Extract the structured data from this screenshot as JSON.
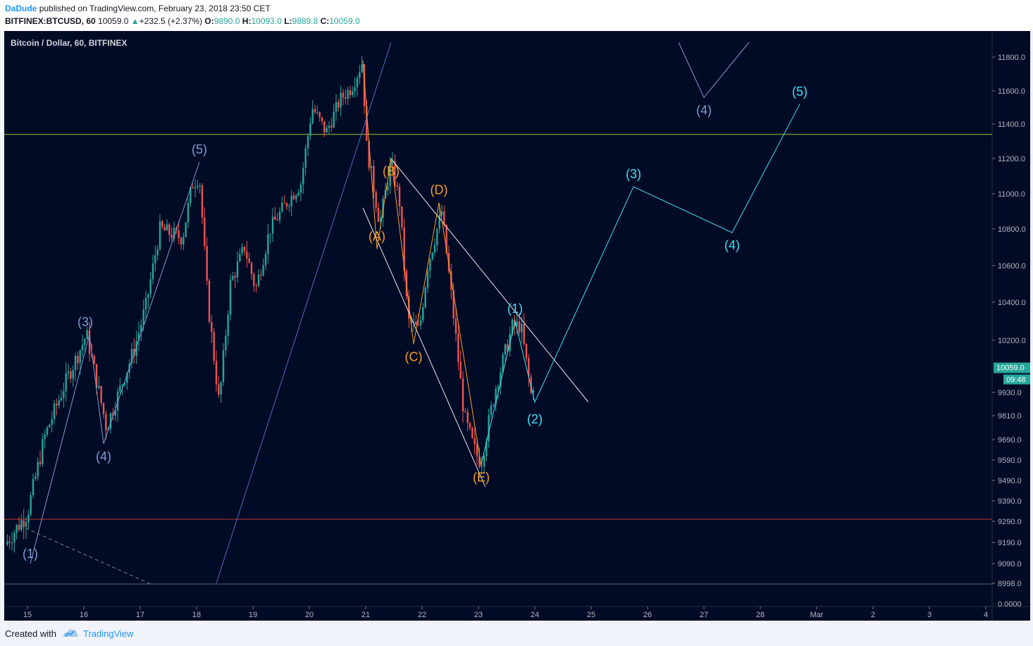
{
  "header": {
    "author": "DaDude",
    "published_text": "published on TradingView.com, February 23, 2018 23:50 CET",
    "symbol": "BITFINEX:BTCUSD, 60",
    "last": "10059.0",
    "change": "+232.5 (+2.37%)",
    "o_label": "O:",
    "o_value": "9890.0",
    "h_label": "H:",
    "h_value": "10093.0",
    "l_label": "L:",
    "l_value": "9889.8",
    "c_label": "C:",
    "c_value": "10059.0"
  },
  "footer": {
    "created_with": "Created with",
    "brand": "TradingView"
  },
  "colors": {
    "background": "#020b26",
    "up": "#26a69a",
    "down": "#ef5350",
    "waves_blue": "#7a9bd1",
    "waves_cyan": "#3ee0f0",
    "waves_orange": "#f5a028"
  },
  "chart_data": {
    "type": "candlestick",
    "title": "Bitcoin / Dollar, 60, BITFINEX",
    "price_ticks": [
      11800,
      11600,
      11400,
      11200,
      11000,
      10800,
      10600,
      10400,
      10200,
      9930,
      9810,
      9690,
      9590,
      9490,
      9390,
      9290,
      9190,
      9090,
      8998
    ],
    "price_tick_labels": [
      "11800.0",
      "11600.0",
      "11400.0",
      "11200.0",
      "11000.0",
      "10800.0",
      "10600.0",
      "10400.0",
      "10200.0",
      "9930.0",
      "9810.0",
      "9690.0",
      "9590.0",
      "9490.0",
      "9390.0",
      "9290.0",
      "9190.0",
      "9090.0",
      "8998.0"
    ],
    "bottom_label": "0.0000",
    "last_price_label": "10059.0",
    "countdown_label": "09:48",
    "x_labels": [
      "15",
      "16",
      "17",
      "18",
      "19",
      "20",
      "21",
      "22",
      "23",
      "24",
      "25",
      "26",
      "27",
      "28",
      "Mar",
      "2",
      "3",
      "4"
    ],
    "horizontal_levels": [
      {
        "name": "resistance",
        "price": 11340,
        "color": "#9acd32"
      },
      {
        "name": "support",
        "price": 9300,
        "color": "#c0392b"
      }
    ],
    "candle_path": [
      [
        14.6,
        9180
      ],
      [
        15.0,
        9330
      ],
      [
        15.3,
        9700
      ],
      [
        15.7,
        10000
      ],
      [
        16.05,
        10230
      ],
      [
        16.4,
        9750
      ],
      [
        16.9,
        10160
      ],
      [
        17.1,
        10380
      ],
      [
        17.35,
        10800
      ],
      [
        17.75,
        10750
      ],
      [
        17.92,
        11050
      ],
      [
        18.05,
        11100
      ],
      [
        18.2,
        10400
      ],
      [
        18.4,
        9870
      ],
      [
        18.6,
        10500
      ],
      [
        18.85,
        10700
      ],
      [
        19.05,
        10470
      ],
      [
        19.3,
        10800
      ],
      [
        19.6,
        10950
      ],
      [
        19.85,
        11060
      ],
      [
        20.05,
        11500
      ],
      [
        20.3,
        11350
      ],
      [
        20.55,
        11550
      ],
      [
        20.75,
        11620
      ],
      [
        20.95,
        11780
      ],
      [
        21.0,
        11300
      ],
      [
        21.25,
        10830
      ],
      [
        21.45,
        11180
      ],
      [
        21.6,
        10950
      ],
      [
        21.75,
        10300
      ],
      [
        21.95,
        10250
      ],
      [
        22.1,
        10600
      ],
      [
        22.35,
        10900
      ],
      [
        22.55,
        10350
      ],
      [
        22.75,
        9800
      ],
      [
        22.95,
        9620
      ],
      [
        23.05,
        9580
      ],
      [
        23.3,
        9950
      ],
      [
        23.6,
        10270
      ],
      [
        23.75,
        10280
      ],
      [
        23.95,
        9890
      ],
      [
        24.0,
        10059
      ]
    ],
    "elliott_waves": [
      {
        "name": "primary-impulse",
        "color": "#7a9bd1",
        "points": [
          [
            15.05,
            9090
          ],
          [
            16.1,
            10230
          ],
          [
            16.35,
            9670
          ],
          [
            18.05,
            11180
          ]
        ],
        "labels": [
          "(1)",
          "(3)",
          "(4)",
          "(5)"
        ]
      },
      {
        "name": "correction-ABCDE",
        "color": "#f5a028",
        "points": [
          [
            20.95,
            11780
          ],
          [
            21.2,
            10690
          ],
          [
            21.45,
            11200
          ],
          [
            21.85,
            10180
          ],
          [
            22.3,
            10950
          ],
          [
            23.05,
            9560
          ]
        ],
        "labels": [
          "(A)",
          "(B)",
          "(C)",
          "(D)",
          "(E)"
        ]
      },
      {
        "name": "new-impulse",
        "color": "#3ee0f0",
        "points": [
          [
            23.05,
            9570
          ],
          [
            23.65,
            10300
          ],
          [
            24.0,
            9880
          ],
          [
            25.75,
            11040
          ],
          [
            27.5,
            10780
          ],
          [
            28.7,
            11520
          ]
        ],
        "labels": [
          "(1)",
          "(2)",
          "(3)",
          "(4)",
          "(5)"
        ]
      },
      {
        "name": "upper-wave-4",
        "color": "#7a9bd1",
        "points": [
          [
            26.55,
            11920
          ],
          [
            27.0,
            11560
          ],
          [
            27.8,
            11920
          ]
        ],
        "labels": [
          "(4)"
        ]
      }
    ],
    "trendlines": [
      {
        "name": "channel-upper",
        "from": [
          21.45,
          11200
        ],
        "to": [
          24.95,
          9880
        ]
      },
      {
        "name": "channel-lower",
        "from": [
          20.95,
          10920
        ],
        "to": [
          23.12,
          9460
        ]
      },
      {
        "name": "long-diagonal",
        "from": [
          18.35,
          8998
        ],
        "to": [
          21.45,
          11920
        ]
      }
    ]
  }
}
